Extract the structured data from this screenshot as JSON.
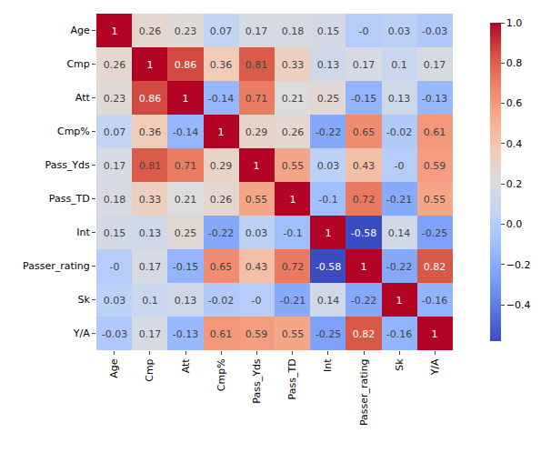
{
  "chart_data": {
    "type": "heatmap",
    "color": "coolwarm",
    "data_labels": true,
    "categories": [
      "Age",
      "Cmp",
      "Att",
      "Cmp%",
      "Pass_Yds",
      "Pass_TD",
      "Int",
      "Passer_rating",
      "Sk",
      "Y/A"
    ],
    "cells": [
      [
        1,
        0.26,
        0.23,
        0.07,
        0.17,
        0.18,
        0.15,
        0,
        0.03,
        -0.03
      ],
      [
        0.26,
        1,
        0.86,
        0.36,
        0.81,
        0.33,
        0.13,
        0.17,
        0.1,
        0.17
      ],
      [
        0.23,
        0.86,
        1,
        -0.14,
        0.71,
        0.21,
        0.25,
        -0.15,
        0.13,
        -0.13
      ],
      [
        0.07,
        0.36,
        -0.14,
        1,
        0.29,
        0.26,
        -0.22,
        0.65,
        -0.02,
        0.61
      ],
      [
        0.17,
        0.81,
        0.71,
        0.29,
        1,
        0.55,
        0.03,
        0.43,
        0,
        0.59
      ],
      [
        0.18,
        0.33,
        0.21,
        0.26,
        0.55,
        1,
        -0.1,
        0.72,
        -0.21,
        0.55
      ],
      [
        0.15,
        0.13,
        0.25,
        -0.22,
        0.03,
        -0.1,
        1,
        -0.58,
        0.14,
        -0.25
      ],
      [
        0,
        0.17,
        -0.15,
        0.65,
        0.43,
        0.72,
        -0.58,
        1,
        -0.22,
        0.82
      ],
      [
        0.03,
        0.1,
        0.13,
        -0.02,
        0,
        -0.21,
        0.14,
        -0.22,
        1,
        -0.16
      ],
      [
        -0.03,
        0.17,
        -0.13,
        0.61,
        0.59,
        0.55,
        -0.25,
        0.82,
        -0.16,
        1
      ]
    ],
    "value_labels": [
      [
        "1",
        "0.26",
        "0.23",
        "0.07",
        "0.17",
        "0.18",
        "0.15",
        "-0",
        "0.03",
        "-0.03"
      ],
      [
        "0.26",
        "1",
        "0.86",
        "0.36",
        "0.81",
        "0.33",
        "0.13",
        "0.17",
        "0.1",
        "0.17"
      ],
      [
        "0.23",
        "0.86",
        "1",
        "-0.14",
        "0.71",
        "0.21",
        "0.25",
        "-0.15",
        "0.13",
        "-0.13"
      ],
      [
        "0.07",
        "0.36",
        "-0.14",
        "1",
        "0.29",
        "0.26",
        "-0.22",
        "0.65",
        "-0.02",
        "0.61"
      ],
      [
        "0.17",
        "0.81",
        "0.71",
        "0.29",
        "1",
        "0.55",
        "0.03",
        "0.43",
        "-0",
        "0.59"
      ],
      [
        "0.18",
        "0.33",
        "0.21",
        "0.26",
        "0.55",
        "1",
        "-0.1",
        "0.72",
        "-0.21",
        "0.55"
      ],
      [
        "0.15",
        "0.13",
        "0.25",
        "-0.22",
        "0.03",
        "-0.1",
        "1",
        "-0.58",
        "0.14",
        "-0.25"
      ],
      [
        "-0",
        "0.17",
        "-0.15",
        "0.65",
        "0.43",
        "0.72",
        "-0.58",
        "1",
        "-0.22",
        "0.82"
      ],
      [
        "0.03",
        "0.1",
        "0.13",
        "-0.02",
        "-0",
        "-0.21",
        "0.14",
        "-0.22",
        "1",
        "-0.16"
      ],
      [
        "-0.03",
        "0.17",
        "-0.13",
        "0.61",
        "0.59",
        "0.55",
        "-0.25",
        "0.82",
        "-0.16",
        "1"
      ]
    ],
    "zlim": [
      -0.58,
      1
    ],
    "zticks": [
      {
        "value": -0.4,
        "label": "−0.4"
      },
      {
        "value": -0.2,
        "label": "−0.2"
      },
      {
        "value": 0,
        "label": "0.0"
      },
      {
        "value": 0.2,
        "label": "0.2"
      },
      {
        "value": 0.4,
        "label": "0.4"
      },
      {
        "value": 0.6,
        "label": "0.6"
      },
      {
        "value": 0.8,
        "label": "0.8"
      },
      {
        "value": 1,
        "label": "1.0"
      }
    ]
  }
}
